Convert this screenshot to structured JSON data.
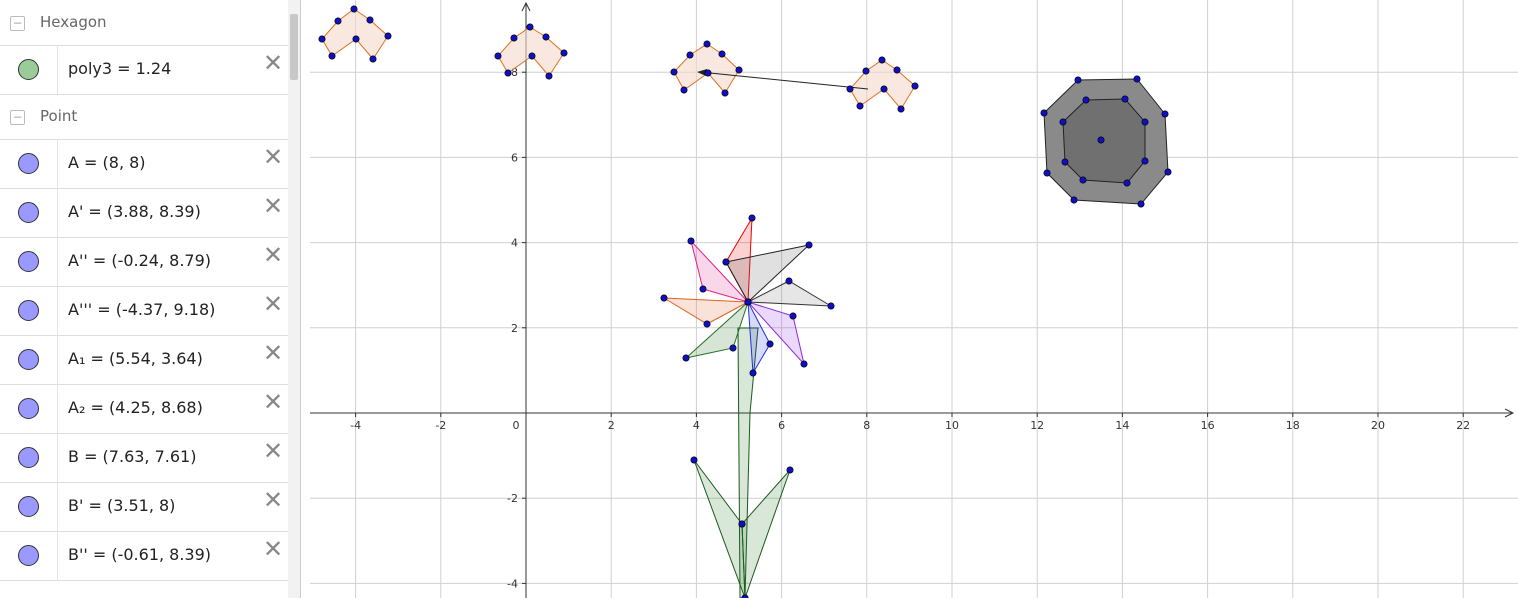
{
  "algebra_view": {
    "groups": [
      {
        "title": "Hexagon",
        "items": [
          "poly3 = 1.24"
        ]
      },
      {
        "title": "Point",
        "items": [
          "A = (8, 8)",
          "A' = (3.88, 8.39)",
          "A'' = (-0.24, 8.79)",
          "A''' = (-4.37, 9.18)",
          "A₁ = (5.54, 3.64)",
          "A₂ = (4.25, 8.68)",
          "B = (7.63, 7.61)",
          "B' = (3.51, 8)",
          "B'' = (-0.61, 8.39)"
        ]
      }
    ]
  },
  "graphics": {
    "xticks": [
      -4,
      -2,
      0,
      2,
      4,
      6,
      8,
      10,
      12,
      14,
      16,
      18,
      20,
      22
    ],
    "yticks": [
      -4,
      -2,
      2,
      4,
      6,
      8
    ]
  }
}
